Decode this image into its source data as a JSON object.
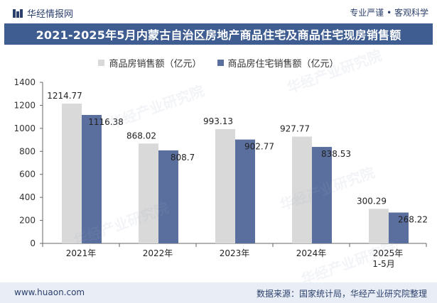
{
  "header": {
    "logo_text": "华经情报网",
    "slogan": "专业严谨 • 客观科学",
    "title": "2021-2025年5月内蒙古自治区房地产商品住宅及商品住宅现房销售额"
  },
  "footer": {
    "website": "www.huaon.com",
    "source": "数据来源：国家统计局，华经产业研究院整理"
  },
  "watermark": {
    "text": "华经产业研究院",
    "url": "www.huaon.com"
  },
  "colors": {
    "series1": "#d9d9d9",
    "series2": "#5a6f9e",
    "title_bg": "#3f5d90",
    "footer_bg": "#e9eef6"
  },
  "chart_data": {
    "type": "bar",
    "title": "2021-2025年5月内蒙古自治区房地产商品住宅及商品住宅现房销售额",
    "categories": [
      "2021年",
      "2022年",
      "2023年",
      "2024年",
      "2025年\n1-5月"
    ],
    "series": [
      {
        "name": "商品房销售额（亿元）",
        "values": [
          1214.77,
          868.02,
          993.13,
          927.77,
          300.29
        ]
      },
      {
        "name": "商品房住宅销售额（亿元）",
        "values": [
          1116.38,
          808.7,
          902.77,
          838.53,
          268.22
        ]
      }
    ],
    "value_labels": [
      [
        "1214.77",
        "868.02",
        "993.13",
        "927.77",
        "300.29"
      ],
      [
        "1116.38",
        "808.7",
        "902.77",
        "838.53",
        "268.22"
      ]
    ],
    "ylim": [
      0,
      1400
    ],
    "yticks": [
      0,
      200,
      400,
      600,
      800,
      1000,
      1200,
      1400
    ],
    "xlabel": "",
    "ylabel": "",
    "legend_position": "top-center",
    "grid": false
  }
}
